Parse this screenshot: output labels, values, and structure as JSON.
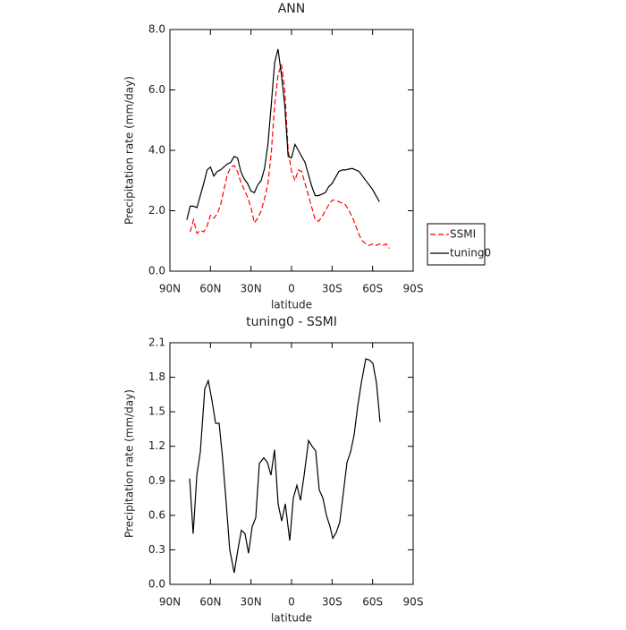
{
  "chart_data": [
    {
      "type": "line",
      "title": "ANN",
      "x_label": "latitude",
      "y_label": "Precipitation rate (mm/day)",
      "xlim": [
        90,
        -90
      ],
      "xticks": [
        {
          "value": 90,
          "label": "90N"
        },
        {
          "value": 60,
          "label": "60N"
        },
        {
          "value": 30,
          "label": "30N"
        },
        0,
        {
          "value": -30,
          "label": "30S"
        },
        {
          "value": -60,
          "label": "60S"
        },
        {
          "value": -90,
          "label": "90S"
        }
      ],
      "ylim": [
        0,
        8
      ],
      "yticks": [
        {
          "value": 0,
          "label": "0.0"
        },
        {
          "value": 2,
          "label": "2.0"
        },
        {
          "value": 4,
          "label": "4.0"
        },
        {
          "value": 6,
          "label": "6.0"
        },
        {
          "value": 8,
          "label": "8.0"
        }
      ],
      "legend": "right",
      "series": [
        {
          "name": "SSMI",
          "color": "#ff0000",
          "linestyle": "dashed",
          "x": [
            75,
            72.5,
            70,
            67.5,
            65,
            62.5,
            60,
            57.5,
            55,
            52.5,
            50,
            47.5,
            45,
            42.5,
            40,
            37.5,
            35,
            32.5,
            30,
            27.5,
            25,
            22.5,
            20,
            17.5,
            15,
            12.5,
            10,
            7.5,
            5,
            2.5,
            0,
            -2.5,
            -5,
            -7.5,
            -10,
            -12.5,
            -15,
            -17.5,
            -20,
            -22.5,
            -25,
            -27.5,
            -30,
            -32.5,
            -35,
            -37.5,
            -40,
            -42.5,
            -45,
            -47.5,
            -50,
            -52.5,
            -55,
            -57.5,
            -60,
            -62.5,
            -65,
            -67.5,
            -70,
            -72.5
          ],
          "values": [
            1.3,
            1.7,
            1.25,
            1.35,
            1.3,
            1.5,
            1.85,
            1.75,
            1.9,
            2.2,
            2.7,
            3.2,
            3.45,
            3.5,
            3.3,
            2.95,
            2.7,
            2.45,
            2.1,
            1.6,
            1.75,
            2.0,
            2.4,
            2.9,
            3.9,
            5.5,
            6.5,
            6.85,
            6.0,
            4.0,
            3.3,
            3.0,
            3.35,
            3.3,
            2.9,
            2.5,
            2.1,
            1.7,
            1.65,
            1.8,
            2.0,
            2.2,
            2.35,
            2.35,
            2.3,
            2.25,
            2.2,
            2.0,
            1.8,
            1.5,
            1.2,
            1.0,
            0.9,
            0.85,
            0.9,
            0.85,
            0.9,
            0.85,
            0.9,
            0.75
          ]
        },
        {
          "name": "tuning0",
          "color": "#000000",
          "linestyle": "solid",
          "x": [
            77.5,
            75,
            72.5,
            70,
            67.5,
            65,
            62.5,
            60,
            57.5,
            55,
            52.5,
            50,
            47.5,
            45,
            42.5,
            40,
            37.5,
            35,
            32.5,
            30,
            27.5,
            25,
            22.5,
            20,
            17.5,
            15,
            12.5,
            10,
            7.5,
            5,
            2.5,
            0,
            -2.5,
            -5,
            -7.5,
            -10,
            -12.5,
            -15,
            -17.5,
            -20,
            -22.5,
            -25,
            -27.5,
            -30,
            -32.5,
            -35,
            -37.5,
            -40,
            -42.5,
            -45,
            -47.5,
            -50,
            -52.5,
            -55,
            -57.5,
            -60,
            -62.5,
            -65
          ],
          "values": [
            1.7,
            2.15,
            2.15,
            2.1,
            2.5,
            2.9,
            3.35,
            3.45,
            3.15,
            3.3,
            3.35,
            3.45,
            3.55,
            3.6,
            3.8,
            3.75,
            3.3,
            3.05,
            2.9,
            2.65,
            2.6,
            2.85,
            3.0,
            3.4,
            4.2,
            5.5,
            6.9,
            7.35,
            6.5,
            5.5,
            3.8,
            3.75,
            4.2,
            4.0,
            3.8,
            3.6,
            3.2,
            2.8,
            2.5,
            2.5,
            2.55,
            2.6,
            2.8,
            2.9,
            3.1,
            3.3,
            3.35,
            3.35,
            3.38,
            3.4,
            3.35,
            3.3,
            3.15,
            3.0,
            2.85,
            2.7,
            2.5,
            2.3
          ]
        }
      ]
    },
    {
      "type": "line",
      "title": "tuning0 - SSMI",
      "x_label": "latitude",
      "y_label": "Precipitation rate (mm/day)",
      "xlim": [
        90,
        -90
      ],
      "xticks": [
        {
          "value": 90,
          "label": "90N"
        },
        {
          "value": 60,
          "label": "60N"
        },
        {
          "value": 30,
          "label": "30N"
        },
        0,
        {
          "value": -30,
          "label": "30S"
        },
        {
          "value": -60,
          "label": "60S"
        },
        {
          "value": -90,
          "label": "90S"
        }
      ],
      "ylim": [
        0,
        2.1
      ],
      "yticks": [
        {
          "value": 0,
          "label": "0.0"
        },
        0.3,
        0.6,
        0.9,
        1.2,
        1.5,
        1.8,
        2.1
      ],
      "series": [
        {
          "color": "#000000",
          "linestyle": "solid",
          "x": [
            75.4,
            72.8,
            70.1,
            67.5,
            64.2,
            61.6,
            58.9,
            56.2,
            53.6,
            51.0,
            48.3,
            45.7,
            42.4,
            39.7,
            37.1,
            34.4,
            31.8,
            29.1,
            26.5,
            23.8,
            20.5,
            17.9,
            15.2,
            12.6,
            9.9,
            7.3,
            4.6,
            1.3,
            -1.3,
            -4.0,
            -6.6,
            -9.3,
            -12.6,
            -15.2,
            -17.9,
            -20.5,
            -23.2,
            -25.8,
            -28.5,
            -30.5,
            -33.1,
            -35.7,
            -38.4,
            -41.0,
            -43.7,
            -46.3,
            -49.0,
            -51.6,
            -54.9,
            -57.6,
            -60.2,
            -62.9,
            -65.5
          ],
          "values": [
            0.92,
            0.44,
            0.95,
            1.15,
            1.7,
            1.77,
            1.6,
            1.4,
            1.4,
            1.1,
            0.7,
            0.3,
            0.1,
            0.3,
            0.47,
            0.44,
            0.27,
            0.5,
            0.58,
            1.05,
            1.1,
            1.06,
            0.95,
            1.17,
            0.7,
            0.55,
            0.7,
            0.38,
            0.75,
            0.86,
            0.73,
            0.95,
            1.25,
            1.2,
            1.16,
            0.82,
            0.75,
            0.6,
            0.5,
            0.4,
            0.45,
            0.54,
            0.8,
            1.06,
            1.15,
            1.3,
            1.55,
            1.75,
            1.96,
            1.95,
            1.92,
            1.75,
            1.41
          ]
        }
      ]
    }
  ]
}
